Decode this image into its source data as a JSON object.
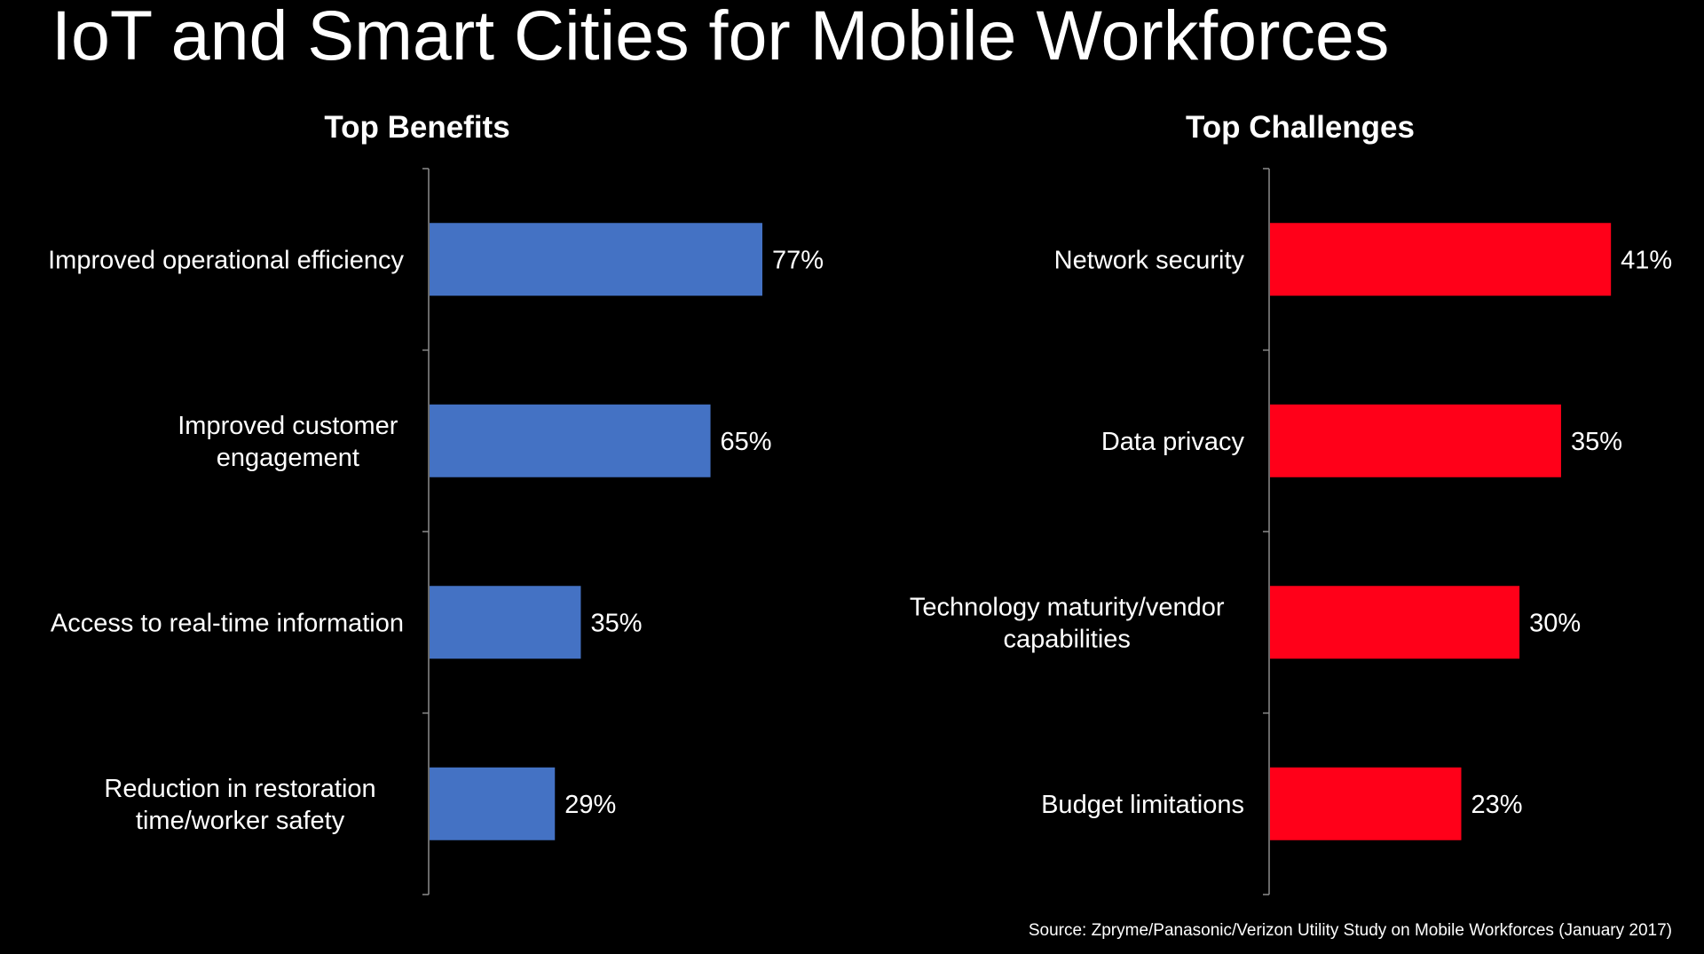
{
  "slide": {
    "title": "IoT and Smart Cities for Mobile Workforces",
    "source": "Source: Zpryme/Panasonic/Verizon Utility Study on Mobile Workforces (January 2017)"
  },
  "colors": {
    "background": "#000000",
    "text": "#ffffff",
    "benefits_bar": "#4472C4",
    "challenges_bar": "#FF0019",
    "axis": "#8c8c8c"
  },
  "chart_data": [
    {
      "type": "bar",
      "orientation": "horizontal",
      "title": "Top Benefits",
      "categories": [
        [
          "Improved operational efficiency"
        ],
        [
          "Improved customer",
          "engagement"
        ],
        [
          "Access to real-time information"
        ],
        [
          "Reduction in restoration",
          "time/worker safety"
        ]
      ],
      "values": [
        77,
        65,
        35,
        29
      ],
      "value_labels": [
        "77%",
        "65%",
        "35%",
        "29%"
      ],
      "unit": "%",
      "xlim": [
        0,
        100
      ],
      "grid": false,
      "legend": "none"
    },
    {
      "type": "bar",
      "orientation": "horizontal",
      "title": "Top Challenges",
      "categories": [
        [
          "Network security"
        ],
        [
          "Data privacy"
        ],
        [
          "Technology maturity/vendor",
          "capabilities"
        ],
        [
          "Budget limitations"
        ]
      ],
      "values": [
        41,
        35,
        30,
        23
      ],
      "value_labels": [
        "41%",
        "35%",
        "30%",
        "23%"
      ],
      "unit": "%",
      "xlim": [
        0,
        50
      ],
      "grid": false,
      "legend": "none"
    }
  ]
}
